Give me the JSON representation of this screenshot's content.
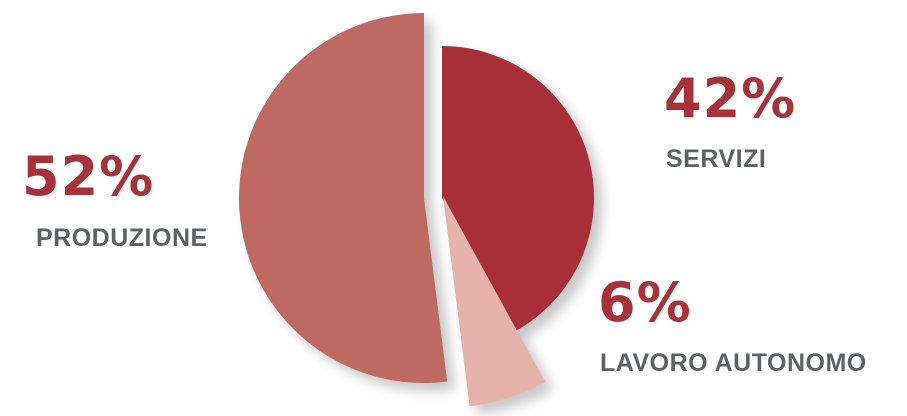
{
  "chart_data": {
    "type": "pie",
    "slices": [
      {
        "label": "SERVIZI",
        "percent_label": "42%",
        "value": 42,
        "color": "#A82E37",
        "shade": "#7E2028"
      },
      {
        "label": "LAVORO AUTONOMO",
        "percent_label": "6%",
        "value": 6,
        "color": "#E5B3A9",
        "shade": "#B78C84"
      },
      {
        "label": "PRODUZIONE",
        "percent_label": "52%",
        "value": 52,
        "color": "#BE6961",
        "shade": "#8E4A44"
      }
    ],
    "legend": "none",
    "label_text_colors": {
      "percent": "#A8323A",
      "category": "#5E6066"
    }
  }
}
